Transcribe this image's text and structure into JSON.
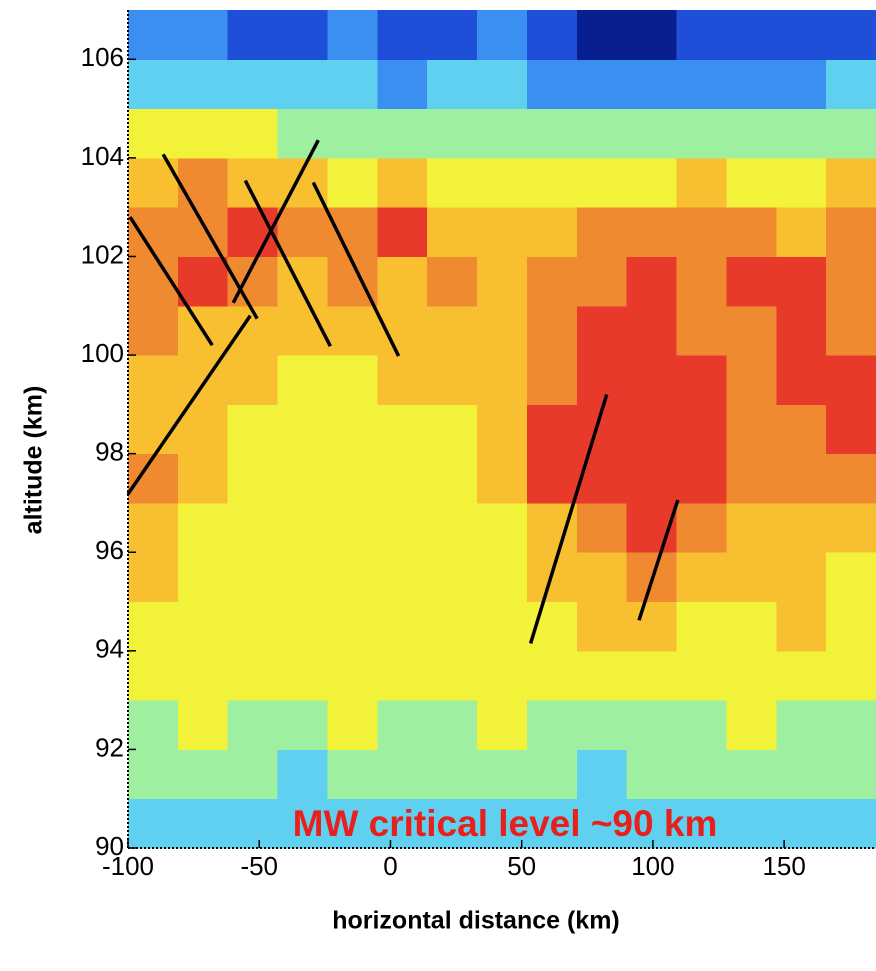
{
  "chart_data": {
    "type": "heatmap",
    "xlabel": "horizontal distance (km)",
    "ylabel": "altitude (km)",
    "annotation": "MW critical level ~90 km",
    "annotation_color": "#e8201c",
    "xlim": [
      -100,
      185
    ],
    "ylim": [
      90,
      107
    ],
    "xticks": [
      -100,
      -50,
      0,
      50,
      100,
      150
    ],
    "yticks": [
      90,
      92,
      94,
      96,
      98,
      100,
      102,
      104,
      106
    ],
    "colormap": [
      "#0a1f8f",
      "#1f4fd8",
      "#3a8ff0",
      "#5fd0f0",
      "#9ef0a0",
      "#f2f23a",
      "#f8c030",
      "#f08a30",
      "#e83a2a"
    ],
    "z": [
      [
        3,
        3,
        3,
        3,
        3,
        3,
        3,
        3,
        3,
        3,
        3,
        3,
        3,
        3,
        3
      ],
      [
        4,
        4,
        4,
        3,
        4,
        4,
        4,
        4,
        4,
        3,
        4,
        4,
        4,
        4,
        4
      ],
      [
        4,
        5,
        4,
        4,
        5,
        4,
        4,
        5,
        4,
        4,
        4,
        4,
        5,
        4,
        4
      ],
      [
        5,
        5,
        5,
        5,
        5,
        5,
        5,
        5,
        5,
        5,
        5,
        5,
        5,
        5,
        5
      ],
      [
        5,
        5,
        5,
        5,
        5,
        5,
        5,
        5,
        5,
        6,
        6,
        5,
        5,
        6,
        5
      ],
      [
        6,
        5,
        5,
        5,
        5,
        5,
        5,
        5,
        6,
        6,
        7,
        6,
        6,
        6,
        5
      ],
      [
        6,
        5,
        5,
        5,
        5,
        5,
        5,
        5,
        6,
        7,
        8,
        7,
        6,
        6,
        6
      ],
      [
        7,
        6,
        5,
        5,
        5,
        5,
        5,
        6,
        8,
        8,
        8,
        8,
        7,
        7,
        7
      ],
      [
        6,
        6,
        5,
        5,
        5,
        5,
        5,
        6,
        8,
        8,
        8,
        8,
        7,
        7,
        8
      ],
      [
        6,
        6,
        6,
        5,
        5,
        6,
        6,
        6,
        7,
        8,
        8,
        8,
        7,
        8,
        8
      ],
      [
        7,
        6,
        6,
        6,
        6,
        6,
        6,
        6,
        7,
        8,
        8,
        7,
        7,
        8,
        7
      ],
      [
        7,
        8,
        7,
        6,
        7,
        6,
        7,
        6,
        7,
        7,
        8,
        7,
        8,
        8,
        7
      ],
      [
        7,
        7,
        8,
        7,
        7,
        8,
        6,
        6,
        6,
        7,
        7,
        7,
        7,
        6,
        7
      ],
      [
        6,
        7,
        6,
        6,
        5,
        6,
        5,
        5,
        5,
        5,
        5,
        6,
        5,
        5,
        6
      ],
      [
        5,
        5,
        5,
        4,
        4,
        4,
        4,
        4,
        4,
        4,
        4,
        4,
        4,
        4,
        4
      ],
      [
        3,
        3,
        3,
        3,
        3,
        2,
        3,
        3,
        2,
        2,
        2,
        2,
        2,
        2,
        3
      ],
      [
        2,
        2,
        1,
        1,
        2,
        1,
        1,
        2,
        1,
        0,
        0,
        1,
        1,
        1,
        1
      ]
    ],
    "line_color": "#000000",
    "lines": [
      {
        "x": [
          -99.2,
          -67.9
        ],
        "y": [
          102.8,
          100.2
        ]
      },
      {
        "x": [
          -86.6,
          -50.8
        ],
        "y": [
          104.07,
          100.74
        ]
      },
      {
        "x": [
          -100,
          -53.4
        ],
        "y": [
          97.18,
          100.8
        ]
      },
      {
        "x": [
          -59.9,
          -27.5
        ],
        "y": [
          101.06,
          104.36
        ]
      },
      {
        "x": [
          -55.3,
          -22.9
        ],
        "y": [
          103.54,
          100.18
        ]
      },
      {
        "x": [
          -29.4,
          3.1
        ],
        "y": [
          103.5,
          99.98
        ]
      },
      {
        "x": [
          53.4,
          82.4
        ],
        "y": [
          94.15,
          99.2
        ]
      },
      {
        "x": [
          94.7,
          109.5
        ],
        "y": [
          94.62,
          97.06
        ]
      }
    ]
  }
}
